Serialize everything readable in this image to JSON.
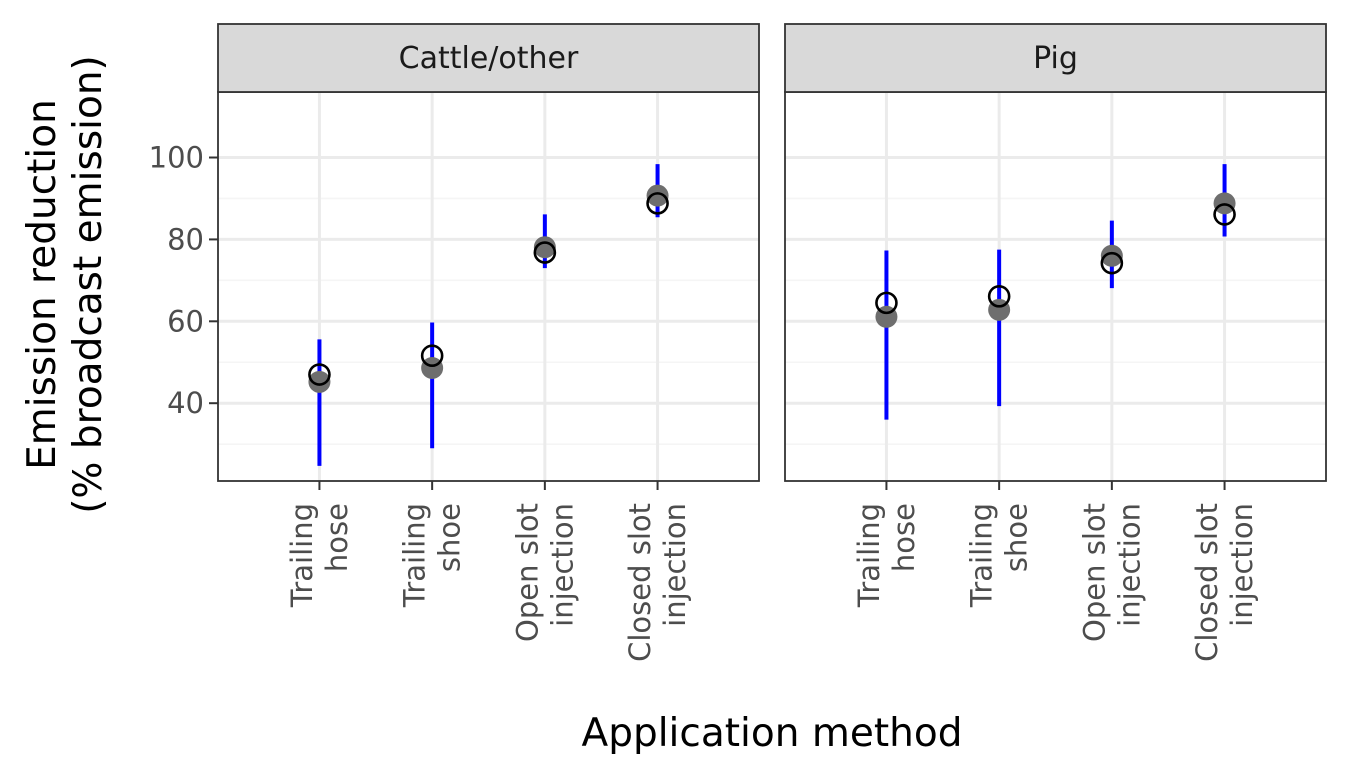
{
  "chart_data": {
    "type": "scatter",
    "xlabel": "Application method",
    "ylabel": [
      "Emission reduction",
      "(% broadcast emission)"
    ],
    "ylim": [
      21,
      116
    ],
    "y_ticks": [
      40,
      60,
      80,
      100
    ],
    "y_minor_ticks": [
      30,
      50,
      70,
      90
    ],
    "grid": true,
    "categories": [
      [
        "Trailing",
        "hose"
      ],
      [
        "Trailing",
        "shoe"
      ],
      [
        "Open slot",
        "injection"
      ],
      [
        "Closed slot",
        "injection"
      ]
    ],
    "facets": [
      {
        "name": "Cattle/other",
        "filled": [
          45.2,
          48.6,
          78.1,
          90.7
        ],
        "open": [
          47.0,
          51.6,
          76.8,
          88.8
        ],
        "ci_low": [
          24.7,
          29.0,
          73.0,
          85.4
        ],
        "ci_high": [
          55.6,
          59.7,
          86.1,
          98.4
        ]
      },
      {
        "name": "Pig",
        "filled": [
          61.1,
          62.8,
          76.0,
          88.8
        ],
        "open": [
          64.5,
          66.1,
          74.2,
          86.1
        ],
        "ci_low": [
          36.0,
          39.3,
          68.1,
          80.7
        ],
        "ci_high": [
          77.3,
          77.5,
          84.6,
          98.4
        ]
      }
    ],
    "colors": {
      "interval": "#0000ff",
      "filled_point": "#6e6e6e",
      "open_point_stroke": "#000000",
      "grid_major": "#ebebeb",
      "grid_minor": "#f5f5f5",
      "strip_fill": "#d9d9d9",
      "panel_border": "#333333"
    }
  }
}
